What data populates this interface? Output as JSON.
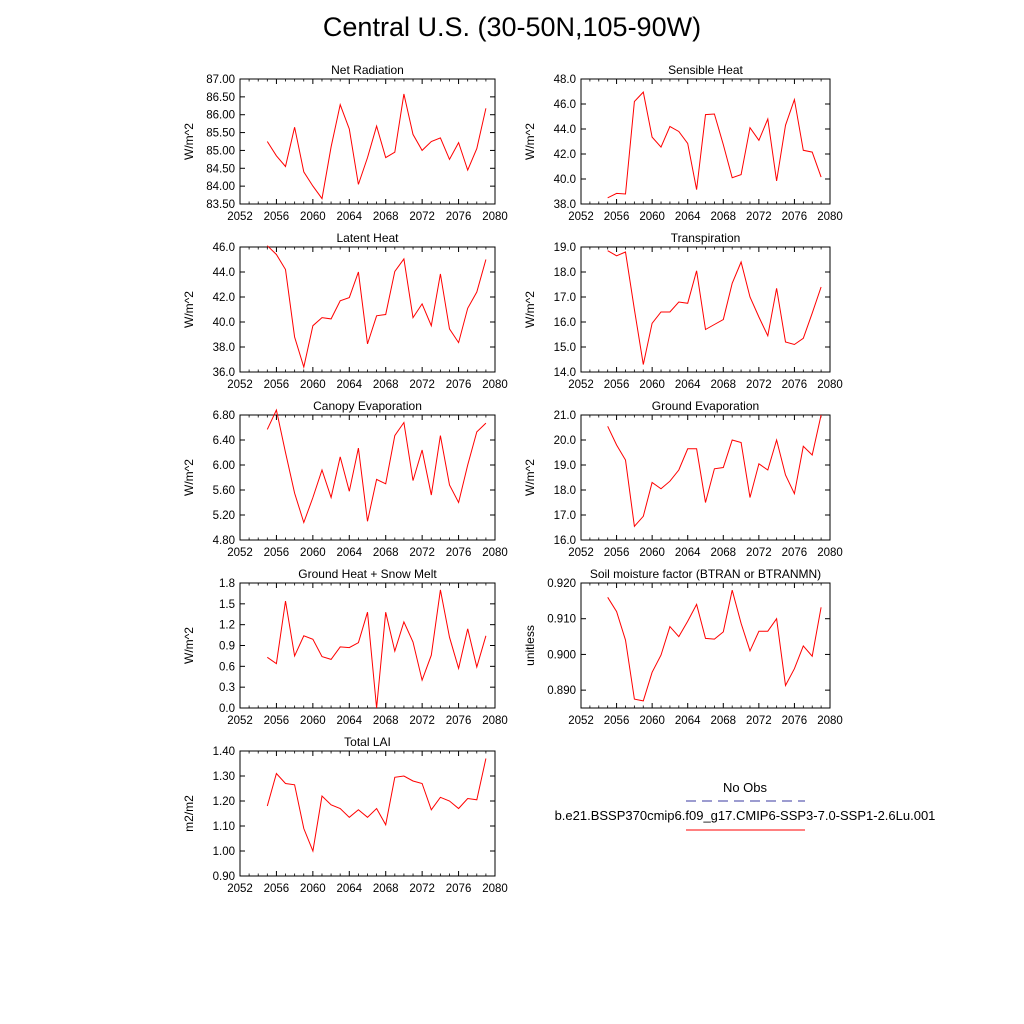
{
  "title": "Central U.S. (30-50N,105-90W)",
  "legend": {
    "entries": [
      {
        "label": "No Obs",
        "color": "#3a3aa0",
        "dash": true
      },
      {
        "label": "b.e21.BSSP370cmip6.f09_g17.CMIP6-SSP3-7.0-SSP1-2.6Lu.001",
        "color": "#ff0000",
        "dash": false
      }
    ]
  },
  "chart_data": [
    {
      "type": "line",
      "title": "Net Radiation",
      "ylabel": "W/m^2",
      "xlim": [
        2052,
        2080
      ],
      "ylim": [
        83.5,
        87.0
      ],
      "xticks": [
        2052,
        2056,
        2060,
        2064,
        2068,
        2072,
        2076,
        2080
      ],
      "yticks": [
        "83.50",
        "84.00",
        "84.50",
        "85.00",
        "85.50",
        "86.00",
        "86.50",
        "87.00"
      ],
      "color": "#ff0000",
      "x": [
        2055,
        2056,
        2057,
        2058,
        2059,
        2060,
        2061,
        2062,
        2063,
        2064,
        2065,
        2066,
        2067,
        2068,
        2069,
        2070,
        2071,
        2072,
        2073,
        2074,
        2075,
        2076,
        2077,
        2078,
        2079
      ],
      "y": [
        85.25,
        84.85,
        84.55,
        85.65,
        84.4,
        84.0,
        83.65,
        85.1,
        86.28,
        85.6,
        84.05,
        84.8,
        85.68,
        84.8,
        84.95,
        86.58,
        85.45,
        85.0,
        85.25,
        85.35,
        84.75,
        85.22,
        84.45,
        85.05,
        86.18
      ]
    },
    {
      "type": "line",
      "title": "Sensible Heat",
      "ylabel": "W/m^2",
      "xlim": [
        2052,
        2080
      ],
      "ylim": [
        38.0,
        48.0
      ],
      "xticks": [
        2052,
        2056,
        2060,
        2064,
        2068,
        2072,
        2076,
        2080
      ],
      "yticks": [
        "38.0",
        "40.0",
        "42.0",
        "44.0",
        "46.0",
        "48.0"
      ],
      "color": "#ff0000",
      "x": [
        2055,
        2056,
        2057,
        2058,
        2059,
        2060,
        2061,
        2062,
        2063,
        2064,
        2065,
        2066,
        2067,
        2068,
        2069,
        2070,
        2071,
        2072,
        2073,
        2074,
        2075,
        2076,
        2077,
        2078,
        2079
      ],
      "y": [
        38.5,
        38.85,
        38.8,
        46.2,
        46.95,
        43.35,
        42.55,
        44.2,
        43.8,
        42.85,
        39.15,
        45.15,
        45.2,
        42.75,
        40.1,
        40.35,
        44.1,
        43.1,
        44.8,
        39.85,
        44.3,
        46.35,
        42.3,
        42.15,
        40.15
      ]
    },
    {
      "type": "line",
      "title": "Latent Heat",
      "ylabel": "W/m^2",
      "xlim": [
        2052,
        2080
      ],
      "ylim": [
        36.0,
        46.0
      ],
      "xticks": [
        2052,
        2056,
        2060,
        2064,
        2068,
        2072,
        2076,
        2080
      ],
      "yticks": [
        "36.0",
        "38.0",
        "40.0",
        "42.0",
        "44.0",
        "46.0"
      ],
      "color": "#ff0000",
      "x": [
        2055,
        2056,
        2057,
        2058,
        2059,
        2060,
        2061,
        2062,
        2063,
        2064,
        2065,
        2066,
        2067,
        2068,
        2069,
        2070,
        2071,
        2072,
        2073,
        2074,
        2075,
        2076,
        2077,
        2078,
        2079
      ],
      "y": [
        46.1,
        45.4,
        44.2,
        38.8,
        36.4,
        39.7,
        40.35,
        40.25,
        41.7,
        41.95,
        44.0,
        38.25,
        40.5,
        40.6,
        44.05,
        45.05,
        40.35,
        41.45,
        39.7,
        43.85,
        39.45,
        38.35,
        41.1,
        42.4,
        45.0
      ]
    },
    {
      "type": "line",
      "title": "Transpiration",
      "ylabel": "W/m^2",
      "xlim": [
        2052,
        2080
      ],
      "ylim": [
        14.0,
        19.0
      ],
      "xticks": [
        2052,
        2056,
        2060,
        2064,
        2068,
        2072,
        2076,
        2080
      ],
      "yticks": [
        "14.0",
        "15.0",
        "16.0",
        "17.0",
        "18.0",
        "19.0"
      ],
      "color": "#ff0000",
      "x": [
        2055,
        2056,
        2057,
        2058,
        2059,
        2060,
        2061,
        2062,
        2063,
        2064,
        2065,
        2066,
        2067,
        2068,
        2069,
        2070,
        2071,
        2072,
        2073,
        2074,
        2075,
        2076,
        2077,
        2078,
        2079
      ],
      "y": [
        18.85,
        18.65,
        18.8,
        16.5,
        14.3,
        15.95,
        16.4,
        16.4,
        16.8,
        16.75,
        18.05,
        15.7,
        15.9,
        16.1,
        17.55,
        18.4,
        17.0,
        16.2,
        15.45,
        17.35,
        15.2,
        15.1,
        15.35,
        16.35,
        17.4
      ]
    },
    {
      "type": "line",
      "title": "Canopy Evaporation",
      "ylabel": "W/m^2",
      "xlim": [
        2052,
        2080
      ],
      "ylim": [
        4.8,
        6.8
      ],
      "xticks": [
        2052,
        2056,
        2060,
        2064,
        2068,
        2072,
        2076,
        2080
      ],
      "yticks": [
        "4.80",
        "5.20",
        "5.60",
        "6.00",
        "6.40",
        "6.80"
      ],
      "color": "#ff0000",
      "x": [
        2055,
        2056,
        2057,
        2058,
        2059,
        2060,
        2061,
        2062,
        2063,
        2064,
        2065,
        2066,
        2067,
        2068,
        2069,
        2070,
        2071,
        2072,
        2073,
        2074,
        2075,
        2076,
        2077,
        2078,
        2079
      ],
      "y": [
        6.57,
        6.88,
        6.2,
        5.55,
        5.08,
        5.48,
        5.92,
        5.48,
        6.13,
        5.58,
        6.27,
        5.1,
        5.77,
        5.7,
        6.47,
        6.68,
        5.75,
        6.24,
        5.52,
        6.47,
        5.68,
        5.4,
        6.0,
        6.53,
        6.67
      ]
    },
    {
      "type": "line",
      "title": "Ground Evaporation",
      "ylabel": "W/m^2",
      "xlim": [
        2052,
        2080
      ],
      "ylim": [
        16.0,
        21.0
      ],
      "xticks": [
        2052,
        2056,
        2060,
        2064,
        2068,
        2072,
        2076,
        2080
      ],
      "yticks": [
        "16.0",
        "17.0",
        "18.0",
        "19.0",
        "20.0",
        "21.0"
      ],
      "color": "#ff0000",
      "x": [
        2055,
        2056,
        2057,
        2058,
        2059,
        2060,
        2061,
        2062,
        2063,
        2064,
        2065,
        2066,
        2067,
        2068,
        2069,
        2070,
        2071,
        2072,
        2073,
        2074,
        2075,
        2076,
        2077,
        2078,
        2079
      ],
      "y": [
        20.55,
        19.8,
        19.2,
        16.55,
        16.95,
        18.3,
        18.05,
        18.35,
        18.8,
        19.65,
        19.65,
        17.5,
        18.85,
        18.9,
        20.0,
        19.9,
        17.7,
        19.05,
        18.8,
        20.0,
        18.6,
        17.85,
        19.75,
        19.4,
        21.0
      ]
    },
    {
      "type": "line",
      "title": "Ground Heat + Snow Melt",
      "ylabel": "W/m^2",
      "xlim": [
        2052,
        2080
      ],
      "ylim": [
        0.0,
        1.8
      ],
      "xticks": [
        2052,
        2056,
        2060,
        2064,
        2068,
        2072,
        2076,
        2080
      ],
      "yticks": [
        "0.0",
        "0.3",
        "0.6",
        "0.9",
        "1.2",
        "1.5",
        "1.8"
      ],
      "color": "#ff0000",
      "x": [
        2055,
        2056,
        2057,
        2058,
        2059,
        2060,
        2061,
        2062,
        2063,
        2064,
        2065,
        2066,
        2067,
        2068,
        2069,
        2070,
        2071,
        2072,
        2073,
        2074,
        2075,
        2076,
        2077,
        2078,
        2079
      ],
      "y": [
        0.73,
        0.64,
        1.54,
        0.75,
        1.04,
        0.99,
        0.74,
        0.7,
        0.88,
        0.87,
        0.94,
        1.38,
        0.0,
        1.38,
        0.82,
        1.24,
        0.95,
        0.4,
        0.76,
        1.7,
        1.02,
        0.57,
        1.14,
        0.59,
        1.04
      ]
    },
    {
      "type": "line",
      "title": "Soil moisture factor (BTRAN or BTRANMN)",
      "ylabel": "unitless",
      "xlim": [
        2052,
        2080
      ],
      "ylim": [
        0.885,
        0.92
      ],
      "xticks": [
        2052,
        2056,
        2060,
        2064,
        2068,
        2072,
        2076,
        2080
      ],
      "yticks": [
        "0.890",
        "0.900",
        "0.910",
        "0.920"
      ],
      "ytick_values": [
        0.89,
        0.9,
        0.91,
        0.92
      ],
      "color": "#ff0000",
      "x": [
        2055,
        2056,
        2057,
        2058,
        2059,
        2060,
        2061,
        2062,
        2063,
        2064,
        2065,
        2066,
        2067,
        2068,
        2069,
        2070,
        2071,
        2072,
        2073,
        2074,
        2075,
        2076,
        2077,
        2078,
        2079
      ],
      "y": [
        0.916,
        0.912,
        0.904,
        0.8875,
        0.887,
        0.895,
        0.8998,
        0.9078,
        0.905,
        0.9093,
        0.914,
        0.9045,
        0.9043,
        0.9063,
        0.918,
        0.9087,
        0.901,
        0.9065,
        0.9065,
        0.91,
        0.8913,
        0.896,
        0.9024,
        0.8995,
        0.9132
      ]
    },
    {
      "type": "line",
      "title": "Total LAI",
      "ylabel": "m2/m2",
      "xlim": [
        2052,
        2080
      ],
      "ylim": [
        0.9,
        1.4
      ],
      "xticks": [
        2052,
        2056,
        2060,
        2064,
        2068,
        2072,
        2076,
        2080
      ],
      "yticks": [
        "0.90",
        "1.00",
        "1.10",
        "1.20",
        "1.30",
        "1.40"
      ],
      "color": "#ff0000",
      "x": [
        2055,
        2056,
        2057,
        2058,
        2059,
        2060,
        2061,
        2062,
        2063,
        2064,
        2065,
        2066,
        2067,
        2068,
        2069,
        2070,
        2071,
        2072,
        2073,
        2074,
        2075,
        2076,
        2077,
        2078,
        2079
      ],
      "y": [
        1.18,
        1.31,
        1.27,
        1.265,
        1.09,
        1.0,
        1.22,
        1.185,
        1.17,
        1.135,
        1.165,
        1.135,
        1.17,
        1.105,
        1.295,
        1.3,
        1.28,
        1.27,
        1.165,
        1.215,
        1.2,
        1.17,
        1.21,
        1.205,
        1.37
      ]
    }
  ]
}
